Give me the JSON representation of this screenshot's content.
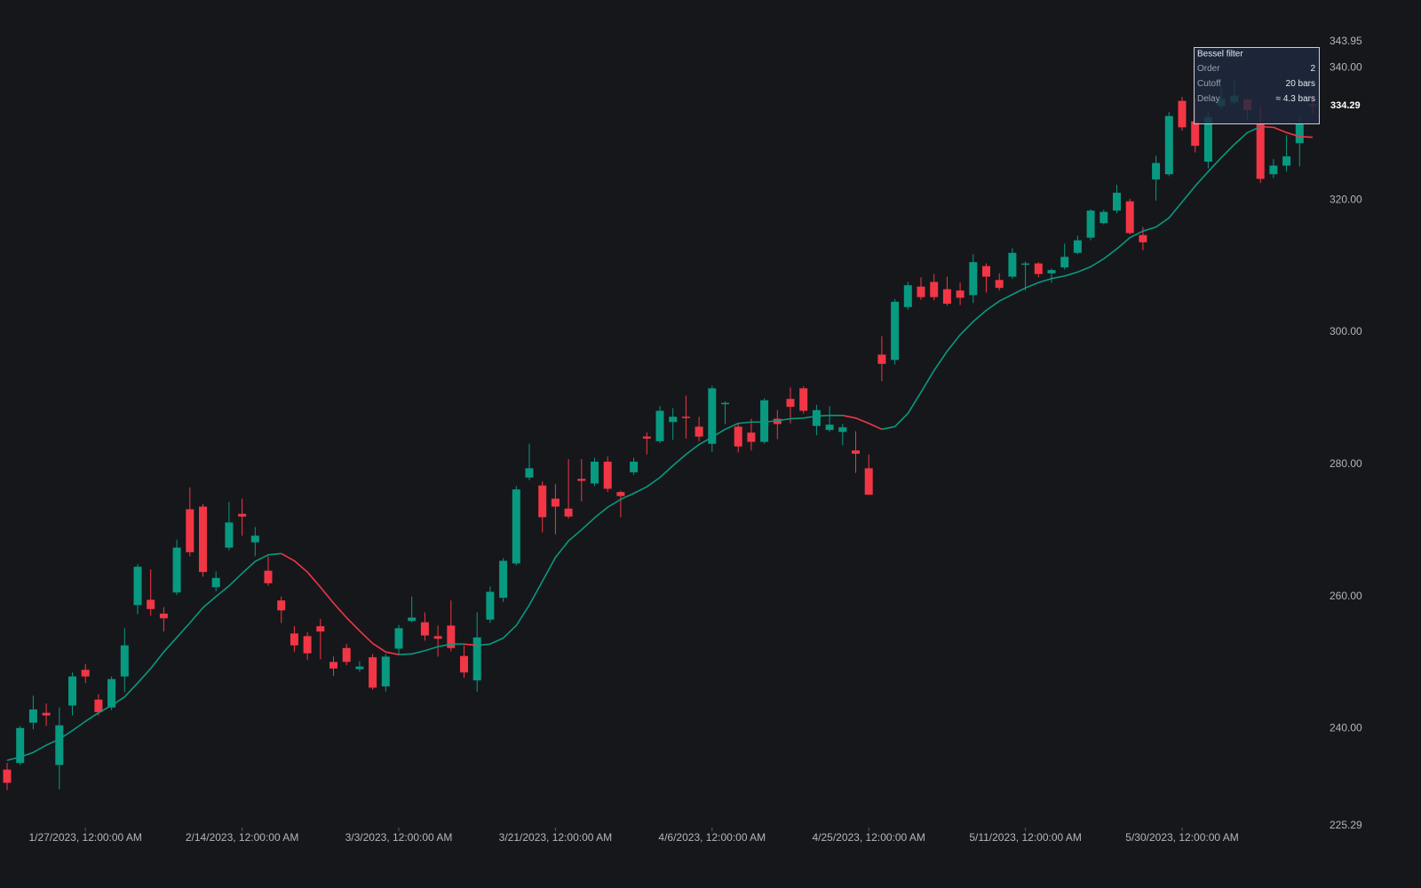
{
  "chart_data": {
    "type": "candlestick",
    "categories": [
      null,
      null,
      null,
      null,
      null,
      null,
      "1/27/2023, 12:00:00 AM",
      null,
      null,
      null,
      null,
      null,
      null,
      null,
      null,
      null,
      null,
      null,
      "2/14/2023, 12:00:00 AM",
      null,
      null,
      null,
      null,
      null,
      null,
      null,
      null,
      null,
      null,
      null,
      "3/3/2023, 12:00:00 AM",
      null,
      null,
      null,
      null,
      null,
      null,
      null,
      null,
      null,
      null,
      null,
      "3/21/2023, 12:00:00 AM",
      null,
      null,
      null,
      null,
      null,
      null,
      null,
      null,
      null,
      null,
      null,
      "4/6/2023, 12:00:00 AM",
      null,
      null,
      null,
      null,
      null,
      null,
      null,
      null,
      null,
      null,
      null,
      "4/25/2023, 12:00:00 AM",
      null,
      null,
      null,
      null,
      null,
      null,
      null,
      null,
      null,
      null,
      null,
      "5/11/2023, 12:00:00 AM",
      null,
      null,
      null,
      null,
      null,
      null,
      null,
      null,
      null,
      null,
      null,
      "5/30/2023, 12:00:00 AM",
      null,
      null,
      null,
      null,
      null,
      null,
      null,
      null,
      null,
      null
    ],
    "candles": {
      "up_color": "#089981",
      "down_color": "#f23645",
      "open": [
        233.8,
        234.8,
        240.9,
        242.4,
        234.5,
        243.5,
        248.9,
        244.4,
        243.2,
        247.9,
        258.7,
        259.5,
        257.4,
        260.6,
        273.2,
        273.6,
        261.4,
        267.4,
        272.5,
        268.2,
        263.9,
        259.4,
        254.4,
        254.0,
        255.5,
        250.1,
        252.2,
        249.0,
        250.8,
        246.4,
        252.1,
        256.3,
        256.1,
        254.0,
        255.6,
        251.0,
        247.3,
        256.5,
        259.8,
        265.0,
        278.0,
        276.8,
        274.8,
        273.3,
        277.8,
        277.1,
        280.4,
        275.8,
        278.8,
        284.2,
        283.5,
        286.4,
        287.2,
        285.7,
        283.1,
        289.1,
        285.7,
        284.8,
        283.4,
        286.9,
        289.9,
        291.5,
        285.8,
        285.2,
        284.9,
        282.1,
        279.4,
        296.6,
        295.8,
        303.8,
        306.9,
        307.6,
        306.5,
        306.3,
        305.6,
        310.0,
        307.9,
        308.4,
        310.2,
        310.4,
        308.9,
        309.8,
        312.0,
        314.3,
        316.5,
        318.4,
        319.8,
        314.7,
        323.1,
        323.9,
        335.0,
        331.9,
        325.8,
        334.2,
        334.8,
        335.2,
        331.5,
        323.9,
        325.2,
        328.6,
        334.45
      ],
      "high": [
        234.8,
        240.4,
        245.0,
        243.8,
        243.2,
        248.5,
        249.8,
        245.2,
        247.9,
        255.2,
        264.9,
        264.1,
        258.4,
        268.6,
        276.5,
        274.0,
        263.8,
        274.3,
        274.8,
        270.5,
        266.1,
        260.0,
        255.5,
        254.6,
        256.6,
        250.9,
        252.8,
        250.2,
        251.3,
        251.3,
        255.7,
        260.0,
        257.6,
        255.6,
        259.4,
        252.6,
        257.6,
        261.5,
        265.8,
        276.7,
        283.1,
        277.4,
        277.0,
        280.8,
        280.8,
        281.0,
        281.2,
        276.0,
        281.0,
        284.8,
        288.8,
        288.5,
        290.4,
        287.2,
        291.9,
        289.5,
        286.2,
        286.9,
        290.0,
        288.2,
        291.6,
        291.8,
        289.0,
        288.8,
        286.1,
        285.0,
        281.5,
        299.4,
        305.0,
        307.6,
        308.3,
        308.8,
        308.4,
        307.5,
        311.8,
        310.4,
        308.9,
        312.7,
        310.7,
        310.6,
        309.6,
        313.4,
        314.6,
        318.6,
        318.5,
        322.3,
        320.2,
        315.9,
        326.7,
        333.3,
        335.6,
        335.3,
        333.3,
        337.3,
        338.3,
        335.3,
        334.2,
        326.2,
        329.8,
        332.6,
        335.3
      ],
      "low": [
        230.7,
        234.5,
        239.9,
        240.4,
        230.8,
        242.0,
        246.9,
        242.0,
        242.8,
        245.5,
        257.3,
        257.1,
        254.7,
        260.2,
        266.1,
        263.0,
        260.8,
        267.0,
        269.2,
        266.1,
        261.6,
        256.0,
        251.6,
        250.4,
        250.5,
        248.0,
        249.6,
        248.6,
        245.9,
        245.6,
        251.3,
        256.1,
        253.3,
        250.9,
        251.7,
        247.7,
        245.6,
        256.0,
        259.2,
        264.7,
        277.6,
        269.7,
        269.4,
        271.8,
        274.4,
        276.7,
        275.8,
        272.0,
        278.4,
        281.5,
        283.2,
        283.7,
        283.9,
        283.5,
        281.9,
        286.1,
        281.8,
        282.1,
        283.1,
        283.8,
        286.2,
        287.7,
        284.4,
        284.9,
        282.9,
        278.7,
        275.4,
        292.6,
        295.1,
        303.4,
        304.9,
        304.8,
        304.0,
        304.1,
        304.4,
        306.0,
        306.3,
        308.1,
        306.3,
        308.3,
        307.5,
        309.5,
        311.8,
        313.9,
        316.3,
        318.0,
        314.8,
        312.4,
        319.9,
        323.6,
        330.5,
        327.2,
        324.8,
        333.8,
        334.5,
        332.2,
        322.6,
        323.3,
        324.3,
        325.1,
        333.1
      ],
      "close": [
        231.8,
        240.1,
        242.9,
        242.0,
        240.5,
        247.9,
        247.9,
        242.5,
        247.5,
        252.6,
        264.5,
        258.1,
        256.7,
        267.4,
        266.7,
        263.7,
        262.8,
        271.2,
        272.1,
        269.2,
        262.0,
        257.9,
        252.6,
        251.4,
        254.7,
        249.1,
        250.1,
        249.4,
        246.2,
        250.9,
        255.2,
        256.8,
        254.1,
        253.6,
        252.2,
        248.5,
        253.8,
        260.7,
        265.4,
        276.2,
        279.4,
        272.0,
        273.6,
        272.1,
        277.5,
        280.4,
        276.3,
        275.2,
        280.4,
        283.9,
        288.1,
        287.2,
        287.0,
        284.2,
        291.5,
        289.3,
        282.7,
        283.4,
        289.7,
        286.1,
        288.7,
        288.1,
        288.2,
        286.0,
        285.6,
        281.6,
        275.4,
        295.2,
        304.6,
        307.1,
        305.3,
        305.3,
        304.3,
        305.2,
        310.6,
        308.4,
        306.7,
        312.0,
        310.4,
        308.8,
        309.4,
        311.4,
        313.9,
        318.4,
        318.2,
        321.1,
        315.0,
        313.6,
        325.6,
        332.7,
        331.0,
        328.2,
        332.5,
        335.3,
        335.8,
        333.6,
        323.2,
        325.2,
        326.6,
        331.6,
        334.29
      ]
    },
    "filter": {
      "name": "Bessel filter",
      "up_color": "#089981",
      "down_color": "#f23645",
      "values": [
        235.2,
        235.7,
        236.4,
        237.5,
        238.4,
        239.7,
        241.1,
        242.4,
        243.5,
        244.8,
        246.9,
        249.1,
        251.6,
        253.8,
        256.0,
        258.3,
        260.0,
        261.6,
        263.5,
        265.3,
        266.3,
        266.5,
        265.4,
        263.7,
        261.4,
        259.0,
        256.8,
        254.8,
        252.9,
        251.6,
        251.2,
        251.3,
        251.8,
        252.4,
        252.8,
        252.8,
        252.6,
        252.8,
        253.7,
        255.6,
        258.7,
        262.3,
        265.9,
        268.4,
        270.1,
        271.9,
        273.5,
        274.7,
        275.6,
        276.6,
        278.0,
        279.8,
        281.5,
        283.0,
        284.1,
        285.3,
        286.2,
        286.4,
        286.4,
        286.6,
        286.9,
        287.0,
        287.3,
        287.4,
        287.4,
        287.0,
        286.2,
        285.3,
        285.7,
        287.7,
        290.9,
        294.2,
        297.1,
        299.6,
        301.6,
        303.3,
        304.7,
        305.7,
        306.7,
        307.5,
        308.1,
        308.5,
        309.1,
        309.9,
        311.1,
        312.6,
        314.3,
        315.3,
        315.9,
        317.3,
        319.7,
        322.1,
        324.3,
        326.4,
        328.4,
        330.2,
        331.1,
        331.0,
        330.2,
        329.6,
        329.5
      ]
    },
    "legend": {
      "rows": [
        {
          "label": "Order",
          "value": "2"
        },
        {
          "label": "Cutoff",
          "value": "20 bars"
        },
        {
          "label": "Delay",
          "value": "≈ 4.3 bars"
        }
      ]
    },
    "ylim": [
      225.29,
      343.95
    ],
    "yticks": [
      {
        "value": 240,
        "label": "240.00"
      },
      {
        "value": 260,
        "label": "260.00"
      },
      {
        "value": 280,
        "label": "280.00"
      },
      {
        "value": 300,
        "label": "300.00"
      },
      {
        "value": 320,
        "label": "320.00"
      },
      {
        "value": 340,
        "label": "340.00"
      }
    ]
  }
}
